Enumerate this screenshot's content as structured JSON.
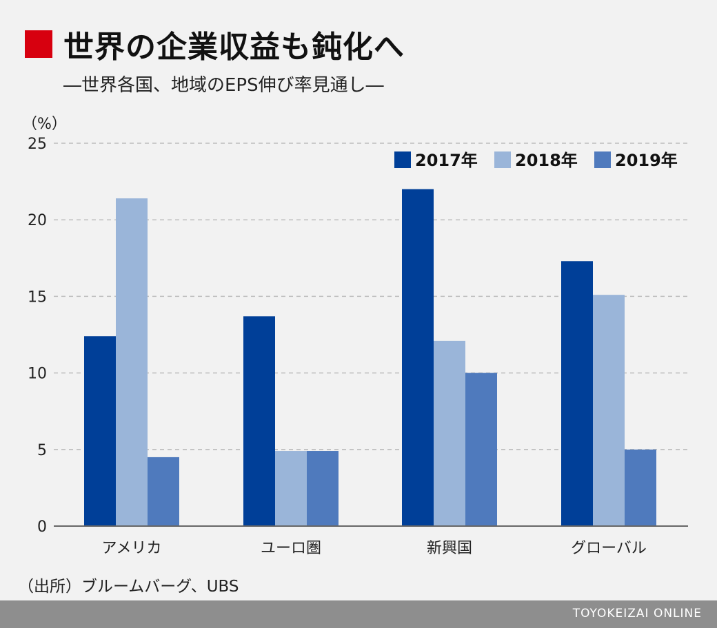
{
  "title": "世界の企業収益も鈍化へ",
  "subtitle": "―世界各国、地域のEPS伸び率見通し―",
  "source": "（出所）ブルームバーグ、UBS",
  "footer": "TOYOKEIZAI ONLINE",
  "colors": {
    "accent": "#d7000f",
    "s2017": "#003f98",
    "s2018": "#9ab5d9",
    "s2019": "#4f7abd",
    "grid": "#bdbdbd",
    "footer_bg": "#8e8e8e"
  },
  "chart_data": {
    "type": "bar",
    "ylabel": "（%）",
    "ylim": [
      0,
      25
    ],
    "yticks": [
      0,
      5,
      10,
      15,
      20,
      25
    ],
    "grid": true,
    "legend_position": "top-right",
    "categories": [
      "アメリカ",
      "ユーロ圏",
      "新興国",
      "グローバル"
    ],
    "series": [
      {
        "name": "2017年",
        "values": [
          12.4,
          13.7,
          22.0,
          17.3
        ]
      },
      {
        "name": "2018年",
        "values": [
          21.4,
          4.9,
          12.1,
          15.1
        ]
      },
      {
        "name": "2019年",
        "values": [
          4.5,
          4.9,
          10.0,
          5.0
        ]
      }
    ]
  }
}
